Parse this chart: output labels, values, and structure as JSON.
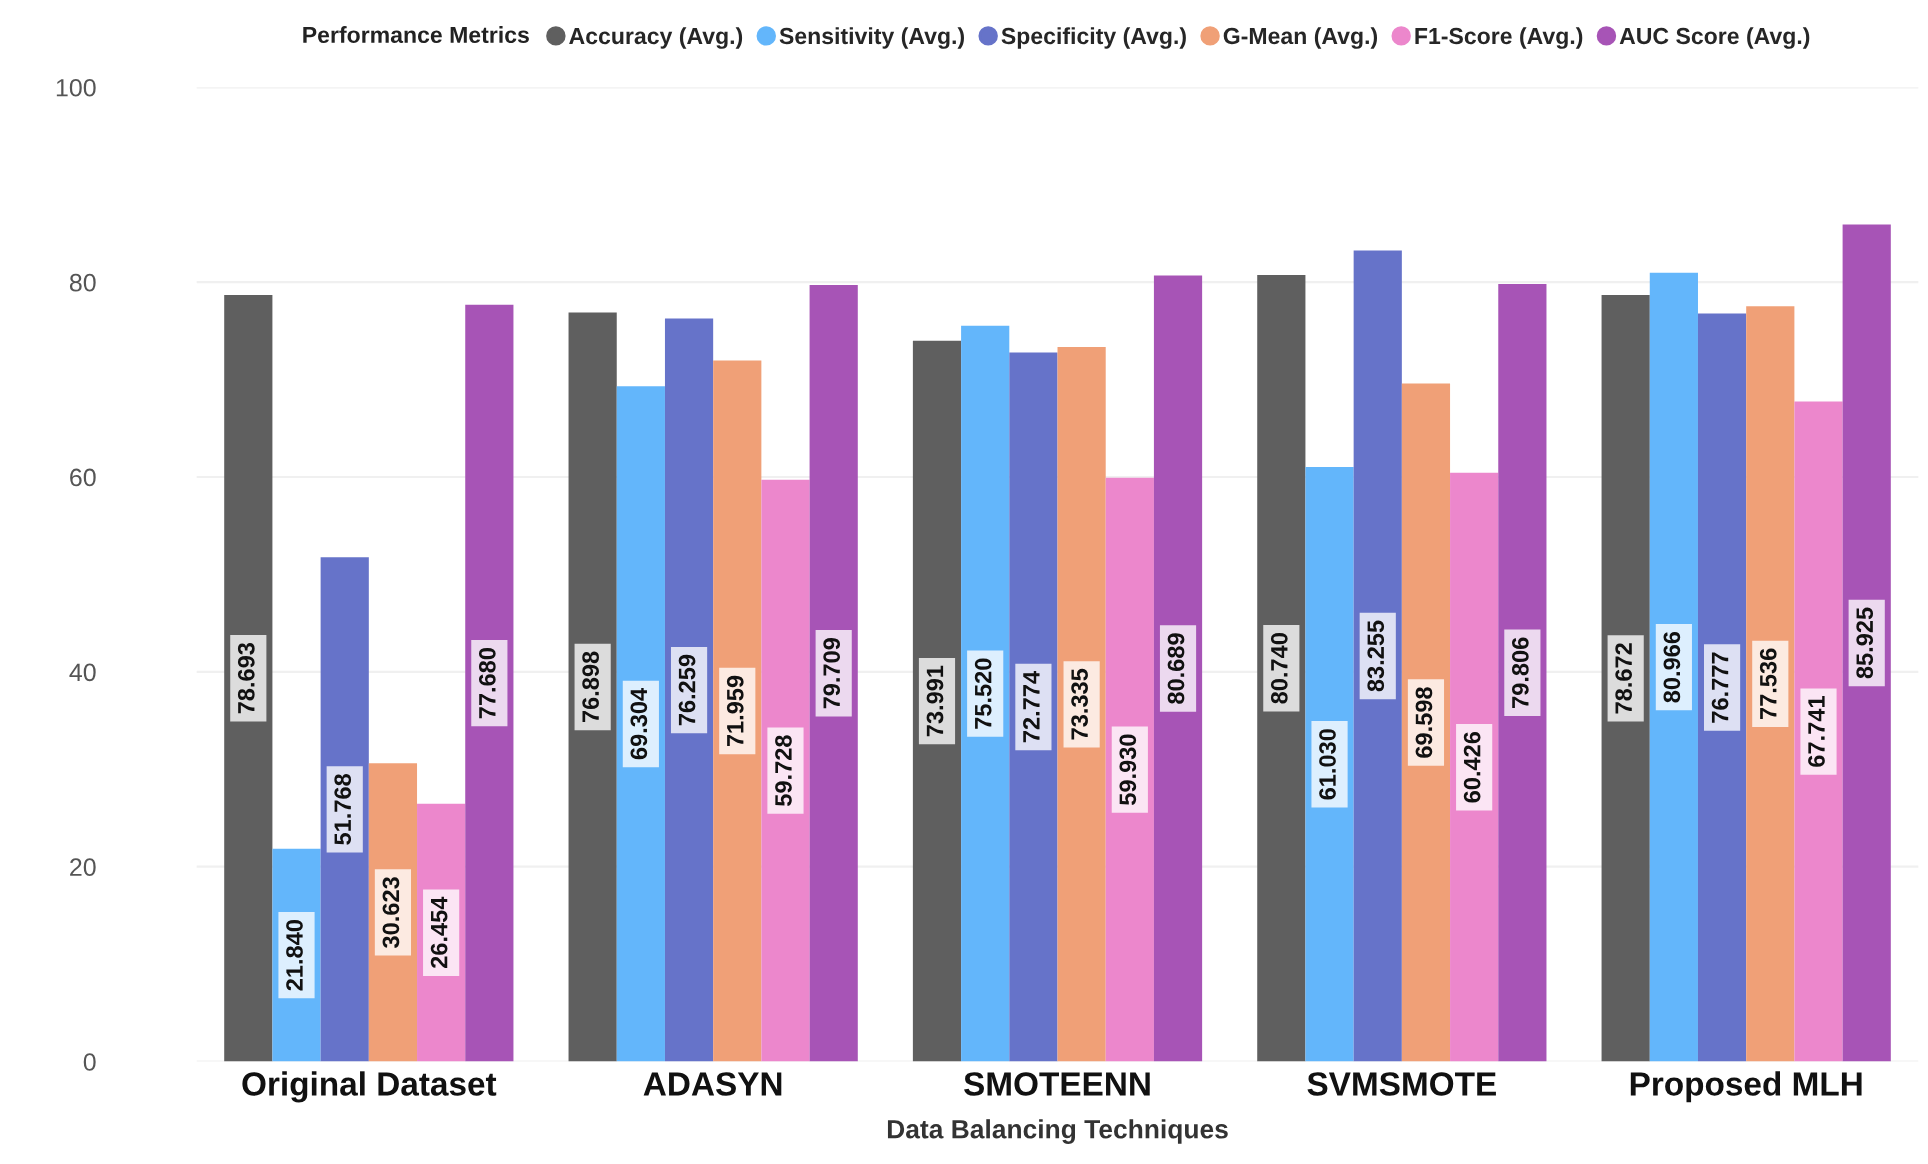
{
  "chart_data": {
    "type": "bar",
    "xlabel": "Data Balancing Techniques",
    "legend_title": "Performance Metrics",
    "categories": [
      "Original Dataset",
      "ADASYN",
      "SMOTEENN",
      "SVMSMOTE",
      "Proposed MLH"
    ],
    "series": [
      {
        "name": "Accuracy (Avg.)",
        "color": "#5f5f5f",
        "values": [
          78.693,
          76.898,
          73.991,
          80.74,
          78.672
        ],
        "value_labels": [
          "78.693",
          "76.898",
          "73.991",
          "80.740",
          "78.672"
        ]
      },
      {
        "name": "Sensitivity (Avg.)",
        "color": "#63b6fb",
        "values": [
          21.84,
          69.304,
          75.52,
          61.03,
          80.966
        ],
        "value_labels": [
          "21.840",
          "69.304",
          "75.520",
          "61.030",
          "80.966"
        ]
      },
      {
        "name": "Specificity (Avg.)",
        "color": "#6673c9",
        "values": [
          51.768,
          76.259,
          72.774,
          83.255,
          76.777
        ],
        "value_labels": [
          "51.768",
          "76.259",
          "72.774",
          "83.255",
          "76.777"
        ]
      },
      {
        "name": "G-Mean (Avg.)",
        "color": "#f0a077",
        "values": [
          30.623,
          71.959,
          73.335,
          69.598,
          77.536
        ],
        "value_labels": [
          "30.623",
          "71.959",
          "73.335",
          "69.598",
          "77.536"
        ]
      },
      {
        "name": "F1-Score (Avg.)",
        "color": "#ec87cc",
        "values": [
          26.454,
          59.728,
          59.93,
          60.426,
          67.741
        ],
        "value_labels": [
          "26.454",
          "59.728",
          "59.930",
          "60.426",
          "67.741"
        ]
      },
      {
        "name": "AUC Score (Avg.)",
        "color": "#a754b6",
        "values": [
          77.68,
          79.709,
          80.689,
          79.806,
          85.925
        ],
        "value_labels": [
          "77.680",
          "79.709",
          "80.689",
          "79.806",
          "85.925"
        ]
      }
    ],
    "ylim": [
      0,
      100
    ],
    "yticks": [
      0,
      20,
      40,
      60,
      80,
      100
    ],
    "grid": "y",
    "legend": "top"
  }
}
